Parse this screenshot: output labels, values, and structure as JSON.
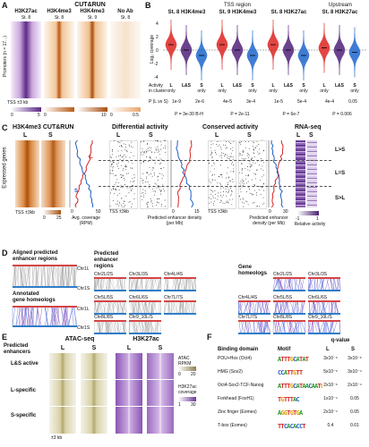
{
  "panel_a": {
    "label": "A",
    "group_header": "CUT&RUN",
    "columns": [
      "H3K27ac",
      "H3K4me3",
      "H3K4me3",
      "No Ab"
    ],
    "col_sub": [
      "St. 8",
      "St. 8",
      "St. 9",
      "St. 8"
    ],
    "row_axis": "Promoters (n = 17...)",
    "bottom_label": "TSS ±3 kb",
    "scale_min": "0",
    "scale_labels": [
      "0",
      "5",
      "0",
      "10",
      "0",
      "0.5"
    ]
  },
  "panel_b": {
    "label": "B",
    "header_tss": "TSS region",
    "header_upstream": "Upstream",
    "groups": [
      "St. 8 H3K4me3",
      "St. 9 H3K4me3",
      "St. 8 H3K27ac",
      "St. 8 H3K27ac"
    ],
    "ylabel": "Log₂ coverage",
    "yticks": [
      "4",
      "2",
      "0",
      "-2",
      "-4"
    ],
    "row_activity": "Activity in cluster",
    "cats": [
      "L",
      "L&S",
      "S",
      "L",
      "L&S",
      "S",
      "L",
      "L&S",
      "S",
      "L",
      "L&S",
      "S"
    ],
    "row_activity2": [
      "only",
      "",
      "only",
      "only",
      "",
      "only",
      "only",
      "",
      "only",
      "only",
      "",
      "only"
    ],
    "row_p": "P (L vs S)",
    "p_values": [
      "1e-9",
      "2e-6",
      "4e-5",
      "3e-4",
      "1e-5",
      "5e-4",
      "4e-4",
      "0.05"
    ],
    "p_lines": [
      "P = 3e-30 B-H",
      "P = 2e-11",
      "P = 6e-7",
      "P = 0.006"
    ]
  },
  "panel_c": {
    "label": "C",
    "title_cutrun": "H3K4me3 CUT&RUN",
    "title_diff": "Differential activity",
    "title_cons": "Conserved activity",
    "title_rna": "RNA-seq",
    "row_axis": "Expressed genes",
    "cols_L_S": [
      "L",
      "S"
    ],
    "bottom_tss": "TSS ±3kb",
    "avg_label": "Avg. coverage (RPM)",
    "diff_label": "Predicted enhancer density (per Mb)",
    "cons_label": "Predicted enhancer density (per Mb)",
    "rna_label": "Relative activity",
    "scale_cutrun": [
      "0",
      "25"
    ],
    "ticks_avg": [
      "0",
      "50"
    ],
    "ticks_diff": [
      "0",
      "15"
    ],
    "ticks_cons": [
      "0",
      "30"
    ],
    "rna_ticks": [
      "-1",
      "1"
    ],
    "groups": [
      "L>S",
      "L=S",
      "S>L"
    ],
    "trace_labels": [
      "L",
      "S"
    ]
  },
  "panel_d": {
    "label": "D",
    "left_title1": "Aligned predicted",
    "left_title2": "enhancer regions",
    "left_title3": "Annotated",
    "left_title4": "gene homeologs",
    "chr_top": "Chr1L",
    "chr_bot": "Chr1S",
    "chr_top2": "Chr1L",
    "chr_bot2": "Chr1S",
    "mid_header1": "Predicted",
    "mid_header2": "enhancer",
    "mid_header3": "regions",
    "right_header1": "Gene",
    "right_header2": "homeologs",
    "grid_labels": [
      "Chr2L/2S",
      "Chr3L/3S",
      "Chr4L/4S",
      "Chr5L/5S",
      "Chr6L/6S",
      "Chr7L/7S",
      "Chr8L/8S",
      "Chr9_10L/S",
      "Chr2L/2S",
      "Chr3L/3S",
      "Chr4L/4S",
      "Chr5L/5S",
      "Chr6L/6S",
      "Chr7L/7S",
      "Chr8L/8S",
      "Chr9_10L/S"
    ]
  },
  "panel_e": {
    "label": "E",
    "left_header": "Predicted enhancers",
    "atac": "ATAC-seq",
    "h3k27ac": "H3K27ac",
    "cols": [
      "L",
      "S",
      "L",
      "S"
    ],
    "rows": [
      "L&S active",
      "L-specific",
      "S-specific"
    ],
    "bottom": "±3 kb",
    "scale1_title": "ATAC RPKM",
    "scale1": [
      "0",
      "20"
    ],
    "scale2_title": "H3K27ac coverage",
    "scale2": [
      "1",
      "30"
    ]
  },
  "panel_f": {
    "label": "F",
    "col_domain": "Binding domain",
    "col_motif": "Motif",
    "col_q": "q-value",
    "col_L": "L",
    "col_S": "S",
    "rows": [
      {
        "domain": "POU+Hox (Oct4)",
        "motif": "ATTTGCATAT",
        "L": "3x10⁻⁶",
        "S": "3x10⁻⁶"
      },
      {
        "domain": "HMG (Sox2)",
        "motif": "CCATTGTT",
        "L": "5x10⁻⁵",
        "S": "3x10⁻⁴"
      },
      {
        "domain": "Oct4-Sox2-TCF-Nanog",
        "motif": "ATTTGCATAACAATG",
        "L": "2x10⁻⁶",
        "S": "2x10⁻⁴"
      },
      {
        "domain": "Forkhead (FoxH1)",
        "motif": "TGTTTAC",
        "L": "1x10⁻⁴",
        "S": "0.05"
      },
      {
        "domain": "Zinc finger (Eomes)",
        "motif": "AGGTGTGA",
        "L": "2x10⁻⁴",
        "S": "0.05"
      },
      {
        "domain": "T-box (Eomes)",
        "motif": "TTCACACCT",
        "L": "0.4",
        "S": "0.01"
      }
    ]
  },
  "colors": {
    "h3k27ac_purple": "#7a3ea0",
    "h3k4me3_orange": "#d97a2b",
    "noab_orange": "#f3d9c0",
    "trace_L": "#d62728",
    "trace_S": "#1f5fbf",
    "violin_L": "#e0312f",
    "violin_LS": "#5b2d82",
    "violin_S": "#2a6fcf"
  }
}
